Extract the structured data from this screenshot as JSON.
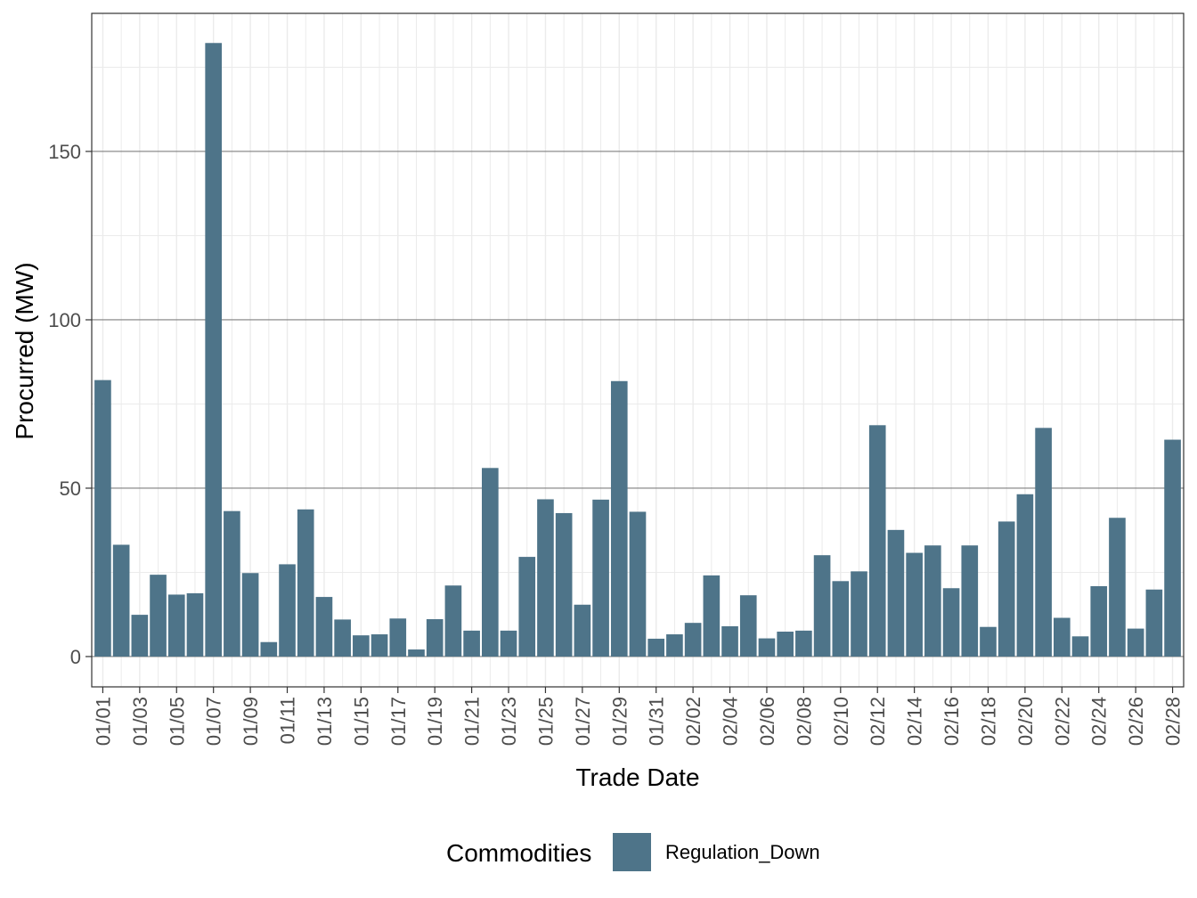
{
  "chart_data": {
    "type": "bar",
    "title": "",
    "xlabel": "Trade Date",
    "ylabel": "Procurred (MW)",
    "ylim": [
      -9,
      191
    ],
    "yticks": [
      0,
      50,
      100,
      150
    ],
    "ytick_labels": [
      "0",
      "50",
      "100",
      "150"
    ],
    "grid": true,
    "legend_position": "bottom",
    "legend_title": "Commodities",
    "bar_color": "#4e7489",
    "categories": [
      "01/01",
      "01/02",
      "01/03",
      "01/04",
      "01/05",
      "01/06",
      "01/07",
      "01/08",
      "01/09",
      "01/10",
      "01/11",
      "01/12",
      "01/13",
      "01/14",
      "01/15",
      "01/16",
      "01/17",
      "01/18",
      "01/19",
      "01/20",
      "01/21",
      "01/22",
      "01/23",
      "01/24",
      "01/25",
      "01/26",
      "01/27",
      "01/28",
      "01/29",
      "01/30",
      "01/31",
      "02/01",
      "02/02",
      "02/03",
      "02/04",
      "02/05",
      "02/06",
      "02/07",
      "02/08",
      "02/09",
      "02/10",
      "02/11",
      "02/12",
      "02/13",
      "02/14",
      "02/15",
      "02/16",
      "02/17",
      "02/18",
      "02/19",
      "02/20",
      "02/21",
      "02/22",
      "02/23",
      "02/24",
      "02/25",
      "02/26",
      "02/27",
      "02/28"
    ],
    "tick_labels": [
      "01/01",
      "01/03",
      "01/05",
      "01/07",
      "01/09",
      "01/11",
      "01/13",
      "01/15",
      "01/17",
      "01/19",
      "01/21",
      "01/23",
      "01/25",
      "01/27",
      "01/29",
      "01/31",
      "02/02",
      "02/04",
      "02/06",
      "02/08",
      "02/10",
      "02/12",
      "02/14",
      "02/16",
      "02/18",
      "02/20",
      "02/22",
      "02/24",
      "02/26",
      "02/28"
    ],
    "series": [
      {
        "name": "Regulation_Down",
        "values": [
          82.1,
          33.2,
          12.4,
          24.3,
          18.4,
          18.8,
          182.2,
          43.2,
          24.8,
          4.3,
          27.4,
          43.7,
          17.7,
          11.0,
          6.3,
          6.6,
          11.3,
          2.1,
          11.1,
          21.1,
          7.7,
          56.0,
          7.7,
          29.6,
          46.7,
          42.6,
          15.4,
          46.6,
          81.8,
          43.0,
          5.3,
          6.6,
          10.0,
          24.1,
          9.0,
          18.2,
          5.4,
          7.4,
          7.7,
          30.1,
          22.4,
          25.3,
          68.7,
          37.6,
          30.8,
          33.0,
          20.3,
          33.0,
          8.8,
          40.1,
          48.2,
          67.9,
          11.5,
          6.0,
          20.9,
          41.2,
          8.3,
          19.9,
          64.4
        ]
      }
    ]
  }
}
